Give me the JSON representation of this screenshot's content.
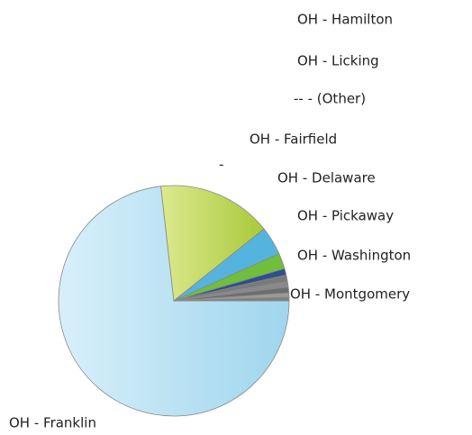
{
  "chart_data": {
    "type": "pie",
    "categories": [
      "OH - Franklin",
      "-",
      "OH - Delaware",
      "OH - Pickaway",
      "OH - Washington",
      "OH - Montgomery",
      "OH - Fairfield",
      "-- - (Other)",
      "OH - Licking",
      "OH - Hamilton"
    ],
    "values": [
      73.2,
      16.1,
      4.0,
      2.2,
      0.9,
      0.9,
      0.8,
      0.8,
      0.6,
      0.5
    ],
    "colors": [
      "#b8e0f2",
      "#c5da62",
      "#55b4de",
      "#6fbf3c",
      "#2f4f8e",
      "#7a7a7a",
      "#8a8a8a",
      "#6e6e6e",
      "#9a9a9a",
      "#808080"
    ]
  }
}
